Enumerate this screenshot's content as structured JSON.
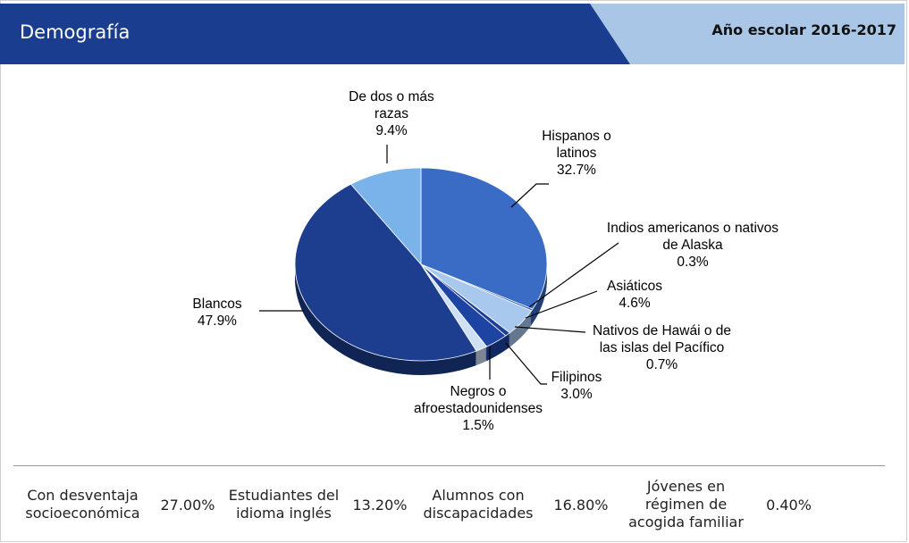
{
  "header": {
    "title": "Demografía",
    "school_year": "Año escolar 2016-2017"
  },
  "chart_data": {
    "type": "pie",
    "categories": [
      "Hispanos o latinos",
      "Indios americanos o nativos de Alaska",
      "Asiáticos",
      "Nativos de Hawái o de las islas del Pacífico",
      "Filipinos",
      "Negros o afroestadounidenses",
      "Blancos",
      "De dos o más razas"
    ],
    "values": [
      32.7,
      0.3,
      4.6,
      0.7,
      3.0,
      1.5,
      47.9,
      9.4
    ],
    "value_labels": [
      "32.7%",
      "0.3%",
      "4.6%",
      "0.7%",
      "3.0%",
      "1.5%",
      "47.9%",
      "9.4%"
    ],
    "colors": [
      "#3a6cc6",
      "#2a56b0",
      "#a9c8ee",
      "#1e3f96",
      "#1d44a3",
      "#cfe0f4",
      "#1d3d8e",
      "#7ab2ea"
    ]
  },
  "stats": [
    {
      "label": "Con desventaja socioeconómica",
      "value": "27.00%"
    },
    {
      "label": "Estudiantes del idioma inglés",
      "value": "13.20%"
    },
    {
      "label": "Alumnos con discapacidades",
      "value": "16.80%"
    },
    {
      "label": "Jóvenes en régimen de acogida familiar",
      "value": "0.40%"
    }
  ]
}
